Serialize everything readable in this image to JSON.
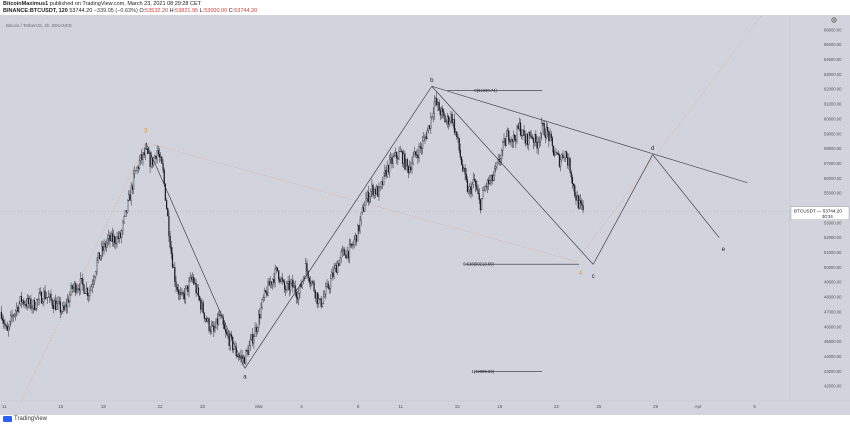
{
  "header": {
    "line1_user": "BitcoinMaximus1",
    "line1_rest": " published on TradingView.com, March 23, 2021 08:29:28 CET",
    "line2_symbol": "BINANCE:BTCUSDT, 120",
    "line2_price": " 53744.20",
    "line2_change": " −339.05 (−0.63%)",
    "line2_o": " O:",
    "line2_o_val": "53532.20",
    "line2_h": " H:",
    "line2_h_val": "53821.95",
    "line2_l": " L:",
    "line2_l_val": "53000.00",
    "line2_c": " C:",
    "line2_c_val": "53744.20"
  },
  "chart_title": "Bitcoin / TetherUS, 2h, BINANCE",
  "footer": {
    "brand": "TradingView"
  },
  "colors": {
    "background": "#d1d4dc",
    "candle": "#131722",
    "trendline": "#2a2e39",
    "orange_line": "#e8a07a",
    "orange_label": "#f7931a",
    "price_tag_bg": "#ffffff"
  },
  "icons": {
    "settings": "gear-icon",
    "logo": "tradingview-logo-icon"
  },
  "chart_data": {
    "type": "candlestick",
    "title": "Bitcoin / TetherUS, 2h, BINANCE",
    "ylim": [
      41000,
      67000
    ],
    "y_ticks": [
      42000,
      43000,
      44000,
      45000,
      46000,
      47000,
      48000,
      49000,
      50000,
      51000,
      52000,
      53000,
      54000,
      55000,
      56000,
      57000,
      58000,
      59000,
      60000,
      61000,
      62000,
      63000,
      64000,
      65000,
      66000
    ],
    "y_tick_labels": [
      "42000.00",
      "43000.00",
      "44000.00",
      "45000.00",
      "46000.00",
      "47000.00",
      "48000.00",
      "49000.00",
      "50000.00",
      "51000.00",
      "52000.00",
      "53000.00",
      "54000.00",
      "55000.00",
      "56000.00",
      "57000.00",
      "58000.00",
      "59000.00",
      "60000.00",
      "61000.00",
      "62000.00",
      "63000.00",
      "64000.00",
      "65000.00",
      "66000.00"
    ],
    "x_ticks": [
      "11",
      "15",
      "18",
      "22",
      "25",
      "Mar",
      "4",
      "8",
      "11",
      "15",
      "18",
      "22",
      "25",
      "29",
      "Apr",
      "5"
    ],
    "x_tick_days": [
      11,
      15,
      18,
      22,
      25,
      29,
      32,
      36,
      39,
      43,
      46,
      50,
      53,
      57,
      60,
      64
    ],
    "x_range_days": [
      10.7,
      66.5
    ],
    "last_price": "53744.20",
    "countdown": "30:34",
    "price_tag_symbol": "BTCUSDT",
    "series": [
      {
        "name": "BTCUSDT",
        "close_path": [
          [
            10.8,
            47000
          ],
          [
            11.2,
            45500
          ],
          [
            11.6,
            46800
          ],
          [
            12.2,
            47800
          ],
          [
            13.0,
            47400
          ],
          [
            13.8,
            48200
          ],
          [
            14.5,
            47600
          ],
          [
            15.2,
            47000
          ],
          [
            15.8,
            48600
          ],
          [
            16.4,
            48900
          ],
          [
            17.0,
            48300
          ],
          [
            17.6,
            50500
          ],
          [
            18.3,
            51800
          ],
          [
            19.2,
            52000
          ],
          [
            19.8,
            54500
          ],
          [
            20.2,
            56200
          ],
          [
            20.6,
            57200
          ],
          [
            21.0,
            57700
          ],
          [
            21.4,
            57000
          ],
          [
            21.8,
            57900
          ],
          [
            22.2,
            56500
          ],
          [
            22.5,
            53800
          ],
          [
            22.8,
            51000
          ],
          [
            23.1,
            49000
          ],
          [
            23.5,
            47800
          ],
          [
            23.9,
            48500
          ],
          [
            24.3,
            49300
          ],
          [
            24.7,
            48000
          ],
          [
            25.0,
            47200
          ],
          [
            25.4,
            46200
          ],
          [
            25.8,
            45600
          ],
          [
            26.2,
            46800
          ],
          [
            26.6,
            45500
          ],
          [
            27.0,
            45000
          ],
          [
            27.4,
            44200
          ],
          [
            27.9,
            43800
          ],
          [
            28.3,
            44600
          ],
          [
            28.8,
            46000
          ],
          [
            29.3,
            47800
          ],
          [
            29.8,
            49000
          ],
          [
            30.3,
            49800
          ],
          [
            30.8,
            48500
          ],
          [
            31.3,
            48800
          ],
          [
            31.8,
            48200
          ],
          [
            32.3,
            50000
          ],
          [
            32.8,
            48800
          ],
          [
            33.3,
            47500
          ],
          [
            33.8,
            48500
          ],
          [
            34.2,
            49500
          ],
          [
            34.8,
            50800
          ],
          [
            35.5,
            51200
          ],
          [
            36.0,
            52500
          ],
          [
            36.5,
            54500
          ],
          [
            37.0,
            55300
          ],
          [
            37.5,
            55000
          ],
          [
            38.0,
            56600
          ],
          [
            38.5,
            57300
          ],
          [
            39.0,
            57700
          ],
          [
            39.5,
            56600
          ],
          [
            40.0,
            57500
          ],
          [
            40.5,
            58200
          ],
          [
            41.0,
            59500
          ],
          [
            41.4,
            61200
          ],
          [
            41.8,
            60500
          ],
          [
            42.2,
            59800
          ],
          [
            42.6,
            60200
          ],
          [
            43.0,
            58600
          ],
          [
            43.4,
            56500
          ],
          [
            43.8,
            55000
          ],
          [
            44.2,
            55800
          ],
          [
            44.6,
            54200
          ],
          [
            45.0,
            55500
          ],
          [
            45.4,
            55800
          ],
          [
            45.8,
            56700
          ],
          [
            46.2,
            58000
          ],
          [
            46.6,
            59000
          ],
          [
            47.0,
            58600
          ],
          [
            47.4,
            59500
          ],
          [
            47.8,
            58500
          ],
          [
            48.2,
            59000
          ],
          [
            48.6,
            58300
          ],
          [
            49.0,
            59400
          ],
          [
            49.4,
            59000
          ],
          [
            49.8,
            57800
          ],
          [
            50.2,
            57200
          ],
          [
            50.6,
            57800
          ],
          [
            51.0,
            56600
          ],
          [
            51.3,
            55000
          ],
          [
            51.6,
            54200
          ],
          [
            51.9,
            53700
          ]
        ]
      }
    ],
    "annotations": [
      {
        "text": "3",
        "day": 21.0,
        "price": 59200,
        "color": "orange"
      },
      {
        "text": "4",
        "day": 51.7,
        "price": 49600,
        "color": "orange"
      },
      {
        "text": "a",
        "day": 28.0,
        "price": 42600
      },
      {
        "text": "b",
        "day": 41.2,
        "price": 62600
      },
      {
        "text": "c",
        "day": 52.6,
        "price": 49400
      },
      {
        "text": "d",
        "day": 56.8,
        "price": 58000
      },
      {
        "text": "e",
        "day": 61.8,
        "price": 51200
      },
      {
        "text": "0(61900.74)",
        "day": 45.0,
        "price": 61900.74
      },
      {
        "text": "0.618(50213.60)",
        "day": 44.5,
        "price": 50213.6
      },
      {
        "text": "1(42989.50)",
        "day": 44.8,
        "price": 42989.5
      }
    ]
  }
}
